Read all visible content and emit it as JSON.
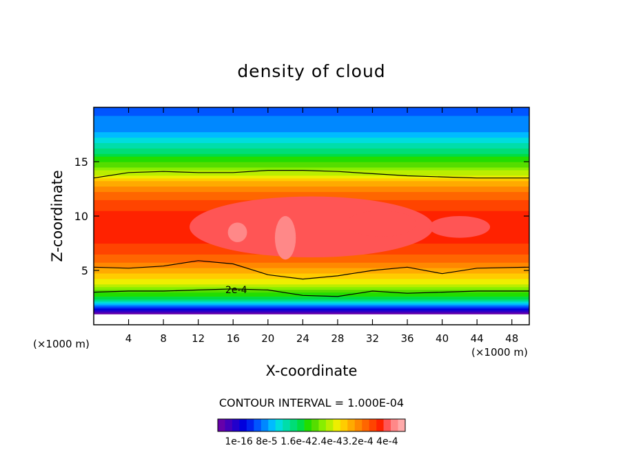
{
  "chart_data": {
    "type": "heatmap",
    "title": "density of cloud",
    "xlabel": "X-coordinate",
    "ylabel": "Z-coordinate",
    "x_unit_left": "(×1000 m)",
    "x_unit_right": "(×1000 m)",
    "xlim": [
      0,
      50
    ],
    "ylim": [
      0,
      20
    ],
    "x_ticks": [
      4,
      8,
      12,
      16,
      20,
      24,
      28,
      32,
      36,
      40,
      44,
      48
    ],
    "y_ticks": [
      5,
      10,
      15
    ],
    "contour_interval_text": "CONTOUR INTERVAL = 1.000E-04",
    "contour_label": "2e-4",
    "colorbar_labels": [
      "1e-16",
      "8e-5",
      "1.6e-4",
      "2.4e-4",
      "3.2e-4",
      "4e-4"
    ],
    "colorbar_label_text": "1e-16 8e-5 1.6e-42.4e-43.2e-4 4e-4",
    "colorbar_colors": [
      "#6600aa",
      "#4400bb",
      "#2200cc",
      "#0000dd",
      "#0022ee",
      "#0055ff",
      "#0088ff",
      "#00bbff",
      "#00dddd",
      "#00ddaa",
      "#00dd77",
      "#00dd44",
      "#22dd00",
      "#55dd00",
      "#88ee00",
      "#bbee00",
      "#eeee00",
      "#ffcc00",
      "#ffaa00",
      "#ff8800",
      "#ff6600",
      "#ff4400",
      "#ff2200",
      "#ff5555",
      "#ff8888",
      "#ffaaaa"
    ],
    "profile_z": [
      1.0,
      1.5,
      2.0,
      2.5,
      3.0,
      3.5,
      4.0,
      5.0,
      6.0,
      7.0,
      8.0,
      9.0,
      10.0,
      11.0,
      12.0,
      13.0,
      14.0,
      15.0,
      16.0,
      17.0,
      18.0,
      19.0,
      20.0
    ],
    "profile_value": [
      0.0,
      0.6,
      1.2,
      1.8,
      2.0,
      2.3,
      2.6,
      2.9,
      3.2,
      3.4,
      3.5,
      3.5,
      3.5,
      3.4,
      3.2,
      2.9,
      2.4,
      2.0,
      1.6,
      1.3,
      1.0,
      0.9,
      0.8
    ],
    "contour_levels": [
      {
        "value": 2.0,
        "z": [
          3.0,
          3.1,
          3.1,
          3.2,
          3.3,
          3.2,
          2.7,
          2.6,
          3.1,
          2.9,
          3.0,
          3.1,
          3.1
        ]
      },
      {
        "value": 2.0,
        "z": [
          5.3,
          5.2,
          5.4,
          5.9,
          5.6,
          4.6,
          4.2,
          4.5,
          5.0,
          5.3,
          4.7,
          5.2,
          5.3
        ]
      },
      {
        "value": 2.0,
        "z": [
          13.5,
          14.0,
          14.1,
          14.0,
          14.0,
          14.2,
          14.2,
          14.1,
          13.9,
          13.7,
          13.6,
          13.5,
          13.5
        ]
      }
    ],
    "contour_x": [
      0,
      4,
      8,
      12,
      16,
      20,
      24,
      28,
      32,
      36,
      40,
      44,
      50
    ]
  }
}
